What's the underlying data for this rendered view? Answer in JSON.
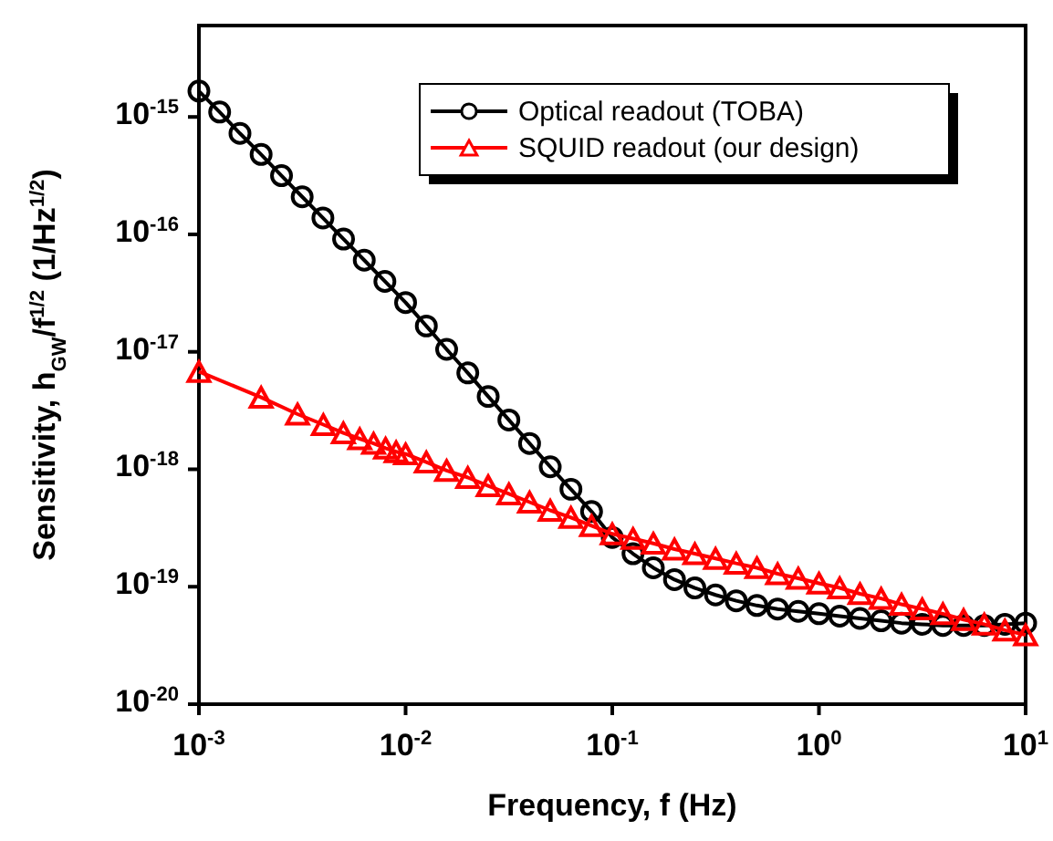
{
  "chart_data": {
    "type": "line",
    "xlabel": "Frequency, f (Hz)",
    "ylabel": "Sensitivity, h$_{GW}$/f$^{1/2}$ (1/Hz$^{1/2}$)",
    "log": "xy",
    "legend": "top right",
    "line_style": "solid",
    "xlim": [
      0.001,
      10
    ],
    "ylim": [
      1e-20,
      6e-15
    ],
    "xticks": [
      {
        "value": 0.001,
        "label": "10$^{-3}$"
      },
      {
        "value": 0.01,
        "label": "10$^{-2}$"
      },
      {
        "value": 0.1,
        "label": "10$^{-1}$"
      },
      {
        "value": 1,
        "label": "10$^{0}$"
      },
      {
        "value": 10,
        "label": "10$^{1}$"
      }
    ],
    "yticks": [
      {
        "value": 1e-20,
        "label": "10$^{-20}$"
      },
      {
        "value": 1e-19,
        "label": "10$^{-19}$"
      },
      {
        "value": 1e-18,
        "label": "10$^{-18}$"
      },
      {
        "value": 1e-17,
        "label": "10$^{-17}$"
      },
      {
        "value": 1e-16,
        "label": "10$^{-16}$"
      },
      {
        "value": 1e-15,
        "label": "10$^{-15}$"
      }
    ],
    "series": [
      {
        "name": "Optical readout (TOBA)",
        "color": "#000000",
        "marker": "circle",
        "x": [
          0.001,
          0.00126,
          0.00158,
          0.002,
          0.00251,
          0.00316,
          0.00398,
          0.00501,
          0.00631,
          0.00794,
          0.01,
          0.0126,
          0.0158,
          0.02,
          0.0251,
          0.0316,
          0.0398,
          0.0501,
          0.0631,
          0.0794,
          0.1,
          0.126,
          0.158,
          0.2,
          0.251,
          0.316,
          0.398,
          0.501,
          0.631,
          0.794,
          1,
          1.26,
          1.58,
          2,
          2.51,
          3.16,
          3.98,
          5.01,
          6.31,
          7.94,
          10
        ],
        "values": [
          1.66e-15,
          1.1e-15,
          7.24e-16,
          4.79e-16,
          3.16e-16,
          2.09e-16,
          1.38e-16,
          9.12e-17,
          6.03e-17,
          3.98e-17,
          2.63e-17,
          1.66e-17,
          1.05e-17,
          6.61e-18,
          4.17e-18,
          2.63e-18,
          1.66e-18,
          1.05e-18,
          6.76e-19,
          4.37e-19,
          2.63e-19,
          1.91e-19,
          1.45e-19,
          1.15e-19,
          9.77e-20,
          8.51e-20,
          7.59e-20,
          6.92e-20,
          6.46e-20,
          6.17e-20,
          5.89e-20,
          5.62e-20,
          5.37e-20,
          5.13e-20,
          4.9e-20,
          4.79e-20,
          4.68e-20,
          4.68e-20,
          4.68e-20,
          4.79e-20,
          4.9e-20
        ]
      },
      {
        "name": "SQUID readout (our design)",
        "color": "#ff0000",
        "marker": "triangle",
        "x": [
          0.001,
          0.002,
          0.003,
          0.004,
          0.005,
          0.006,
          0.007,
          0.008,
          0.009,
          0.01,
          0.0126,
          0.0158,
          0.02,
          0.0251,
          0.0316,
          0.0398,
          0.0501,
          0.0631,
          0.0794,
          0.1,
          0.126,
          0.158,
          0.2,
          0.251,
          0.316,
          0.398,
          0.501,
          0.631,
          0.794,
          1,
          1.26,
          1.58,
          2,
          2.51,
          3.16,
          3.98,
          5.01,
          6.31,
          7.94,
          10
        ],
        "values": [
          6.8e-18,
          4.1e-18,
          2.95e-18,
          2.4e-18,
          2.04e-18,
          1.82e-18,
          1.66e-18,
          1.51e-18,
          1.41e-18,
          1.35e-18,
          1.15e-18,
          9.77e-19,
          8.51e-19,
          7.24e-19,
          6.17e-19,
          5.25e-19,
          4.47e-19,
          3.89e-19,
          3.31e-19,
          2.82e-19,
          2.57e-19,
          2.34e-19,
          2.09e-19,
          1.91e-19,
          1.74e-19,
          1.58e-19,
          1.45e-19,
          1.29e-19,
          1.18e-19,
          1.07e-19,
          9.77e-20,
          8.71e-20,
          7.94e-20,
          7.08e-20,
          6.46e-20,
          5.89e-20,
          5.25e-20,
          4.79e-20,
          4.27e-20,
          3.89e-20
        ]
      }
    ]
  }
}
